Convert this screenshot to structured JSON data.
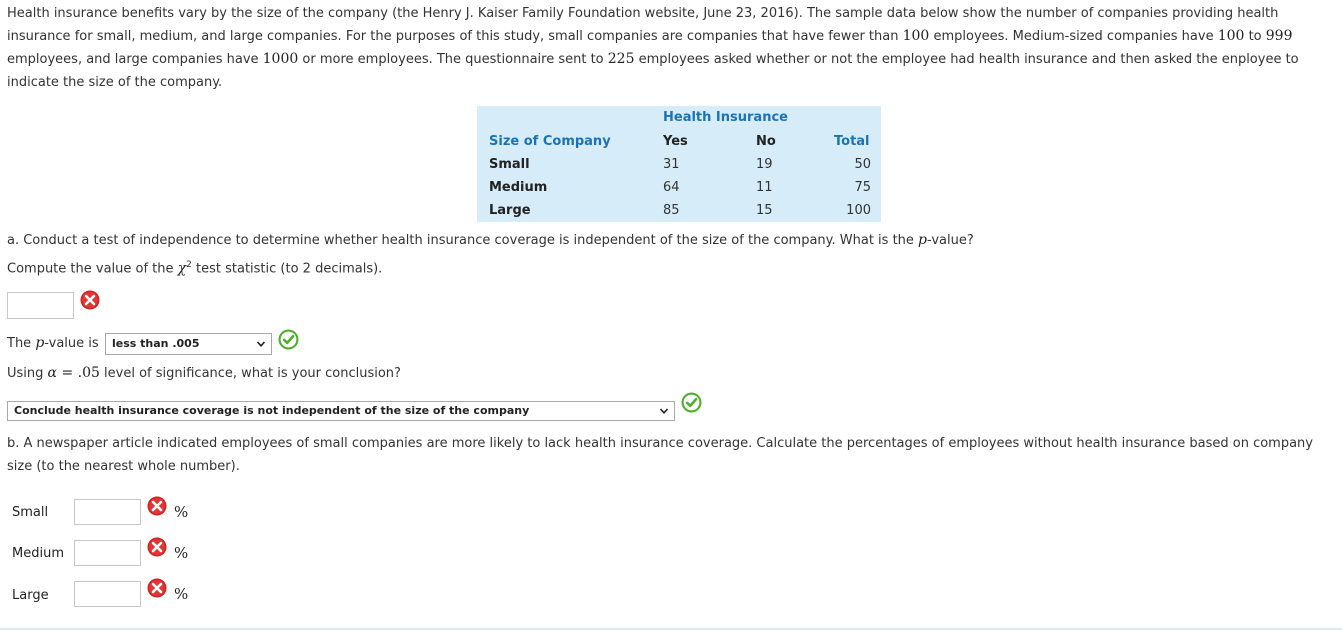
{
  "intro": {
    "t1": "Health insurance benefits vary by the size of the company (the Henry J. Kaiser Family Foundation website, June 23, 2016). The sample data below show the number of companies providing health insurance for small, medium, and large companies. For the purposes of this study, small companies are companies that have fewer than ",
    "n1": "100",
    "t2": " employees. Medium-sized companies have ",
    "n2": "100",
    "t3": " to ",
    "n3": "999",
    "t4": " employees, and large companies have ",
    "n4": "1000",
    "t5": " or more employees. The questionnaire sent to ",
    "n5": "225",
    "t6": " employees asked whether or not the employee had health insurance and then asked the enployee to indicate the size of the company."
  },
  "table": {
    "group_header": "Health Insurance",
    "col_headers": [
      "Size of Company",
      "Yes",
      "No",
      "Total"
    ],
    "rows": [
      {
        "size": "Small",
        "yes": "31",
        "no": "19",
        "total": "50"
      },
      {
        "size": "Medium",
        "yes": "64",
        "no": "11",
        "total": "75"
      },
      {
        "size": "Large",
        "yes": "85",
        "no": "15",
        "total": "100"
      }
    ]
  },
  "part_a": {
    "question_pre": "a. Conduct a test of independence to determine whether health insurance coverage is independent of the size of the company. What is the ",
    "question_p": "p",
    "question_post": "-value?",
    "compute_pre": "Compute the value of the ",
    "chi_symbol": "χ",
    "chi_exp": "2",
    "compute_post": " test statistic (to 2 decimals).",
    "chi_value": "",
    "chi_status": "incorrect",
    "pvalue_pre": "The ",
    "pvalue_p": "p",
    "pvalue_post": "-value is",
    "pvalue_selected": "less than .005",
    "pvalue_status": "correct",
    "alpha_pre": "Using ",
    "alpha_symbol": "α",
    "alpha_eq": " = ",
    "alpha_value": ".05",
    "alpha_post": " level of significance, what is your conclusion?",
    "conclusion_selected": "Conclude health insurance coverage is not independent of the size of the company",
    "conclusion_status": "correct"
  },
  "part_b": {
    "question": "b. A newspaper article indicated employees of small companies are more likely to lack health insurance coverage. Calculate the percentages of employees without health insurance based on company size (to the nearest whole number).",
    "rows": [
      {
        "label": "Small",
        "value": "",
        "unit": "%",
        "status": "incorrect"
      },
      {
        "label": "Medium",
        "value": "",
        "unit": "%",
        "status": "incorrect"
      },
      {
        "label": "Large",
        "value": "",
        "unit": "%",
        "status": "incorrect"
      }
    ]
  },
  "colors": {
    "correct": "#4caf2a",
    "incorrect": "#d21f1f",
    "table_bg": "#d6edf9",
    "header_text": "#1a73b8"
  }
}
